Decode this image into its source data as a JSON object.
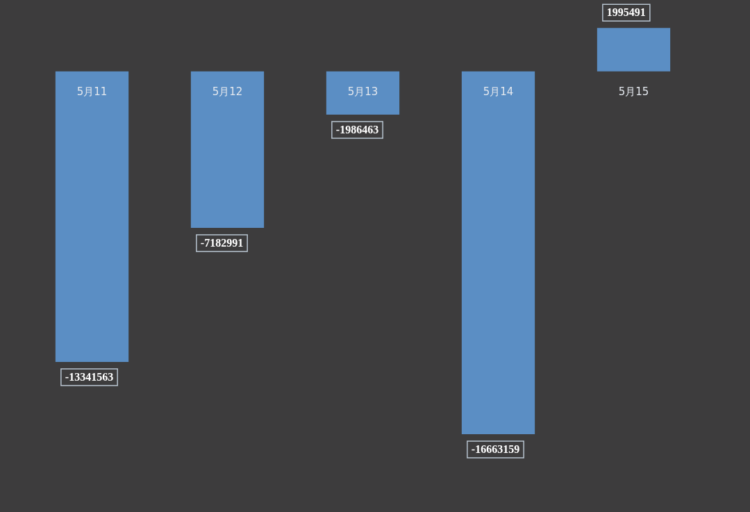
{
  "chart_data": {
    "type": "bar",
    "categories": [
      "5月11",
      "5月12",
      "5月13",
      "5月14",
      "5月15"
    ],
    "values": [
      -13341563,
      -7182991,
      -1986463,
      -16663159,
      1995491
    ],
    "color": "#5b8ec4",
    "data_labels": true
  }
}
